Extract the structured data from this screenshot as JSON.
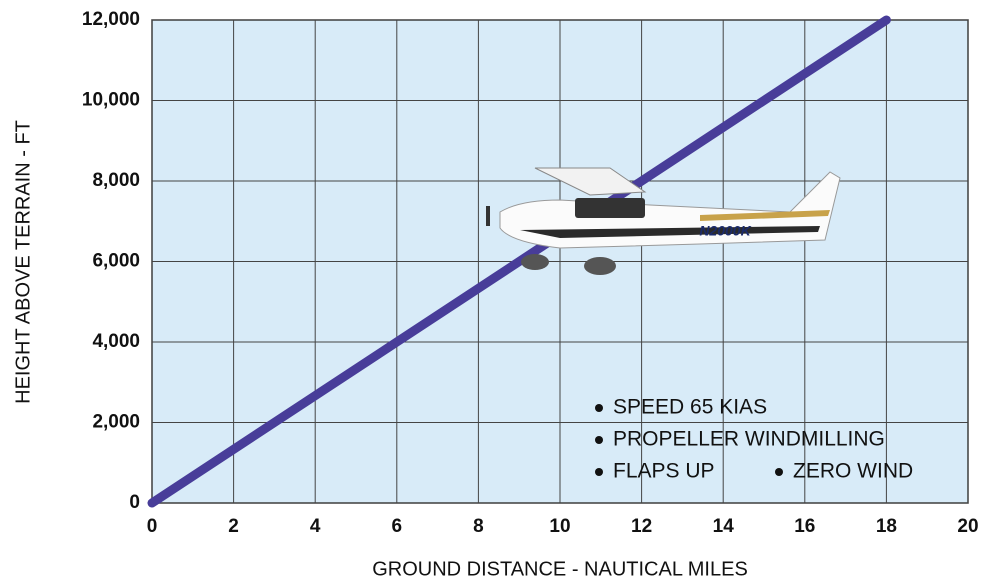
{
  "chart_data": {
    "type": "line",
    "x_label": "GROUND DISTANCE - NAUTICAL MILES",
    "y_label": "HEIGHT ABOVE TERRAIN - FT",
    "x": [
      0,
      18
    ],
    "values": [
      0,
      12000
    ],
    "color": "#483d99",
    "xlim": [
      0,
      20
    ],
    "ylim": [
      0,
      12000
    ],
    "xticks": [
      0,
      2,
      4,
      6,
      8,
      10,
      12,
      14,
      16,
      18,
      20
    ],
    "yticks": [
      0,
      {
        "value": 2000,
        "label": "2,000"
      },
      {
        "value": 4000,
        "label": "4,000"
      },
      {
        "value": 6000,
        "label": "6,000"
      },
      {
        "value": 8000,
        "label": "8,000"
      },
      {
        "value": 10000,
        "label": "10,000"
      },
      {
        "value": 12000,
        "label": "12,000"
      }
    ],
    "grid": true,
    "annotations": [
      "SPEED 65 KIAS",
      "PROPELLER WINDMILLING",
      "FLAPS UP",
      "ZERO WIND"
    ],
    "aircraft_label": "N2000K"
  }
}
